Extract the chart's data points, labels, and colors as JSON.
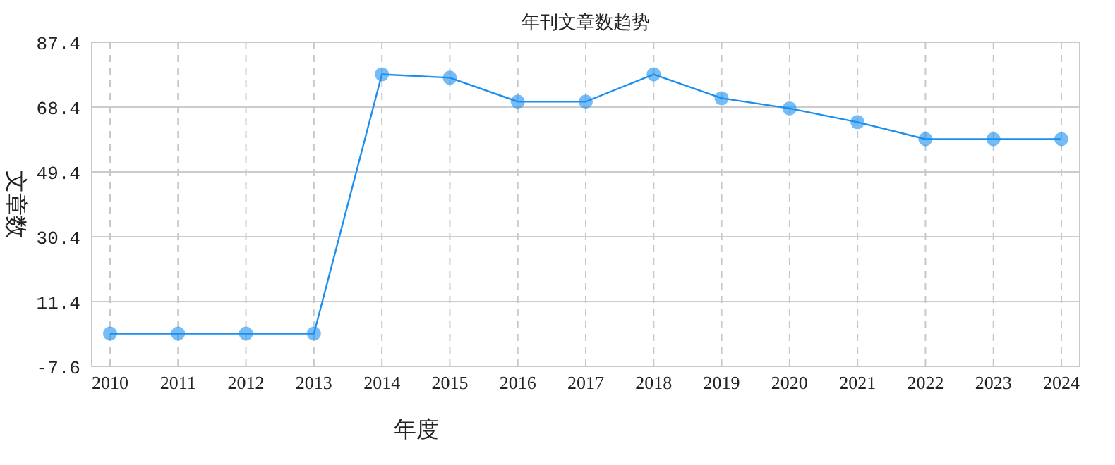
{
  "chart_data": {
    "type": "line",
    "title": "年刊文章数趋势",
    "xlabel": "年度",
    "ylabel": "文章数",
    "categories": [
      "2010",
      "2011",
      "2012",
      "2013",
      "2014",
      "2015",
      "2016",
      "2017",
      "2018",
      "2019",
      "2020",
      "2021",
      "2022",
      "2023",
      "2024"
    ],
    "series": [
      {
        "color": "#1a8ff0",
        "values": [
          2,
          2,
          2,
          2,
          78,
          77,
          70,
          70,
          78,
          71,
          68,
          64,
          59,
          59,
          59
        ]
      }
    ],
    "ylim": [
      -7.6,
      87.4
    ],
    "yticks": [
      -7.6,
      11.4,
      30.4,
      49.4,
      68.4,
      87.4
    ],
    "grid": true,
    "marker": "circle",
    "line_style": "solid"
  }
}
